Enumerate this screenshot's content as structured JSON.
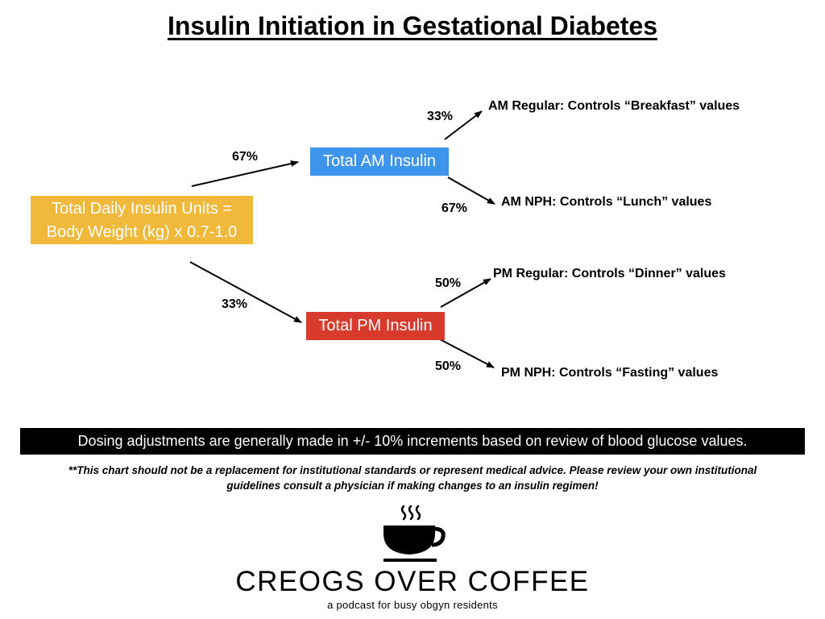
{
  "title": "Insulin Initiation in Gestational Diabetes",
  "nodes": {
    "total": {
      "line1": "Total Daily Insulin Units =",
      "line2": "Body Weight (kg) x 0.7-1.0",
      "color": "#f0b93b"
    },
    "am": {
      "label": "Total AM Insulin",
      "color": "#3f95ec"
    },
    "pm": {
      "label": "Total PM Insulin",
      "color": "#d83a2c"
    }
  },
  "splits": {
    "total_to_am": "67%",
    "total_to_pm": "33%",
    "am_to_regular": "33%",
    "am_to_nph": "67%",
    "pm_to_regular": "50%",
    "pm_to_nph": "50%"
  },
  "outcomes": {
    "am_regular": "AM Regular: Controls “Breakfast” values",
    "am_nph": "AM NPH: Controls “Lunch” values",
    "pm_regular": "PM Regular: Controls “Dinner” values",
    "pm_nph": "PM NPH: Controls “Fasting” values"
  },
  "banner": "Dosing adjustments are generally made in +/- 10% increments based on review of blood glucose values.",
  "disclaimer": {
    "line1": "**This chart should not be a replacement for institutional standards or represent medical advice. Please review your own institutional",
    "line2": "guidelines consult a physician if making changes to an insulin regimen!"
  },
  "logo": {
    "icon": "coffee-cup-icon",
    "name": "CREOGS OVER COFFEE",
    "tagline": "a podcast for busy obgyn residents"
  }
}
